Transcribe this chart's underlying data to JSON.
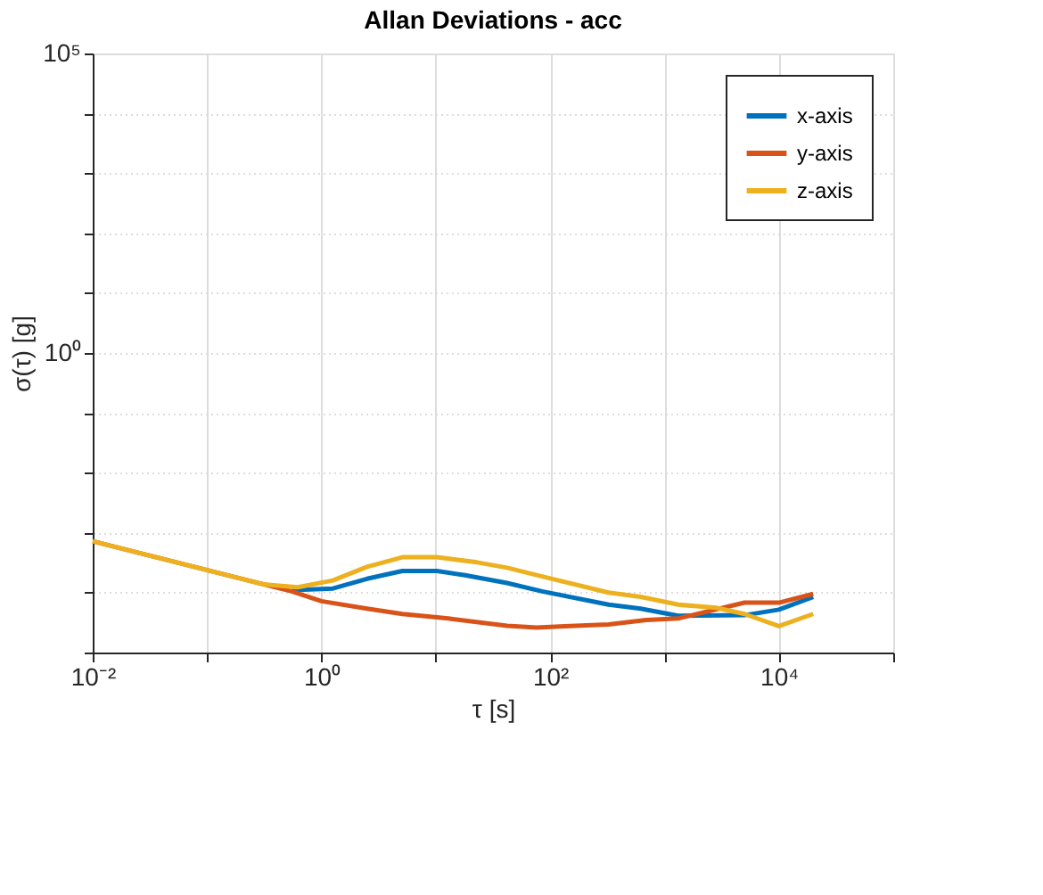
{
  "chart_data": {
    "type": "line",
    "title": "Allan Deviations - acc",
    "xlabel": "τ [s]",
    "ylabel": "σ(τ) [g]",
    "log": "xy",
    "grid": true,
    "legend": "top right",
    "line_style": "solid",
    "marker": "none",
    "xlim": [
      0.01,
      100000
    ],
    "ylim": [
      1e-05,
      100000
    ],
    "xticks": [
      {
        "value": 0.01,
        "label": "10⁻²"
      },
      {
        "value": 0.1,
        "label": null
      },
      {
        "value": 1,
        "label": "10⁰"
      },
      {
        "value": 10,
        "label": null
      },
      {
        "value": 100,
        "label": "10²"
      },
      {
        "value": 1000,
        "label": null
      },
      {
        "value": 10000,
        "label": "10⁴"
      },
      {
        "value": 100000,
        "label": null
      }
    ],
    "yticks": [
      {
        "value": 1e-05,
        "label": null
      },
      {
        "value": 0.0001,
        "label": null
      },
      {
        "value": 0.001,
        "label": null
      },
      {
        "value": 0.01,
        "label": null
      },
      {
        "value": 0.1,
        "label": null
      },
      {
        "value": 1,
        "label": "10⁰"
      },
      {
        "value": 10,
        "label": null
      },
      {
        "value": 100,
        "label": null
      },
      {
        "value": 1000,
        "label": null
      },
      {
        "value": 10000,
        "label": null
      },
      {
        "value": 100000,
        "label": "10⁵"
      }
    ],
    "series": [
      {
        "name": "x-axis",
        "color": "#0072bd",
        "x": [
          0.55,
          1.26,
          2.5,
          5.1,
          10.2,
          18,
          42,
          85,
          324,
          617,
          1318,
          5012,
          10000,
          19950
        ],
        "values": [
          0.00011,
          0.000117,
          0.00017,
          0.00023,
          0.00023,
          0.000195,
          0.000145,
          0.000105,
          6.3e-05,
          5.4e-05,
          4.1e-05,
          4.2e-05,
          5.2e-05,
          8.5e-05
        ]
      },
      {
        "name": "y-axis",
        "color": "#d95319",
        "x": [
          0.01,
          0.31,
          0.55,
          1,
          2.5,
          5.1,
          12.9,
          42,
          76,
          135,
          324,
          692,
          1318,
          5012,
          10000,
          19950
        ],
        "values": [
          0.00072,
          0.000138,
          0.000105,
          7.2e-05,
          5.4e-05,
          4.4e-05,
          3.7e-05,
          2.8e-05,
          2.6e-05,
          2.75e-05,
          2.95e-05,
          3.5e-05,
          3.7e-05,
          6.8e-05,
          6.8e-05,
          9.5e-05
        ]
      },
      {
        "name": "z-axis",
        "color": "#edb120",
        "x": [
          0.01,
          0.31,
          0.62,
          1.26,
          2.5,
          5.1,
          10.2,
          23,
          42,
          85,
          324,
          617,
          1318,
          2818,
          5012,
          10000,
          19950
        ],
        "values": [
          0.00072,
          0.000138,
          0.000123,
          0.00016,
          0.00027,
          0.00039,
          0.00039,
          0.00032,
          0.00026,
          0.000186,
          0.0001,
          8.5e-05,
          6.3e-05,
          5.6e-05,
          4.4e-05,
          2.75e-05,
          4.4e-05
        ]
      }
    ]
  }
}
